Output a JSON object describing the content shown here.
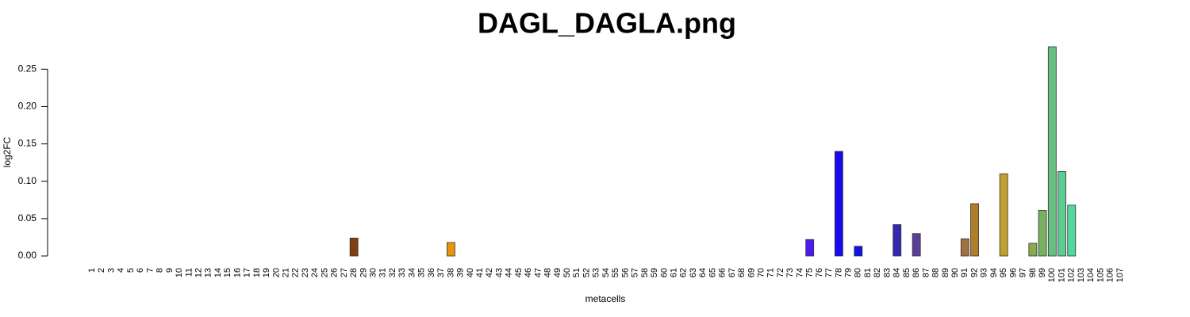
{
  "chart_data": {
    "type": "bar",
    "title": "DAGL_DAGLA.png",
    "x_label": "metacells",
    "y_label": "log2FC",
    "categories": [
      "1",
      "2",
      "3",
      "4",
      "5",
      "6",
      "7",
      "8",
      "9",
      "10",
      "11",
      "12",
      "13",
      "14",
      "15",
      "16",
      "17",
      "18",
      "19",
      "20",
      "21",
      "22",
      "23",
      "24",
      "25",
      "26",
      "27",
      "28",
      "29",
      "30",
      "31",
      "32",
      "33",
      "34",
      "35",
      "36",
      "37",
      "38",
      "39",
      "40",
      "41",
      "42",
      "43",
      "44",
      "45",
      "46",
      "47",
      "48",
      "49",
      "50",
      "51",
      "52",
      "53",
      "54",
      "55",
      "56",
      "57",
      "58",
      "59",
      "60",
      "61",
      "62",
      "63",
      "64",
      "65",
      "66",
      "67",
      "68",
      "69",
      "70",
      "71",
      "72",
      "73",
      "74",
      "75",
      "76",
      "77",
      "78",
      "79",
      "80",
      "81",
      "82",
      "83",
      "84",
      "85",
      "86",
      "87",
      "88",
      "89",
      "90",
      "91",
      "92",
      "93",
      "94",
      "95",
      "96",
      "97",
      "98",
      "99",
      "100",
      "101",
      "102",
      "103",
      "104",
      "105",
      "106",
      "107"
    ],
    "values": [
      0,
      0,
      0,
      0,
      0,
      0,
      0,
      0,
      0,
      0,
      0,
      0,
      0,
      0,
      0,
      0,
      0,
      0,
      0,
      0,
      0,
      0,
      0,
      0,
      0,
      0,
      0,
      0.024,
      0,
      0,
      0,
      0,
      0,
      0,
      0,
      0,
      0,
      0.018,
      0,
      0,
      0,
      0,
      0,
      0,
      0,
      0,
      0,
      0,
      0,
      0,
      0,
      0,
      0,
      0,
      0,
      0,
      0,
      0,
      0,
      0,
      0,
      0,
      0,
      0,
      0,
      0,
      0,
      0,
      0,
      0,
      0,
      0,
      0,
      0,
      0.022,
      0,
      0,
      0.14,
      0,
      0.013,
      0,
      0,
      0,
      0.042,
      0,
      0.03,
      0,
      0,
      0,
      0,
      0.023,
      0.07,
      0,
      0,
      0.11,
      0,
      0,
      0.017,
      0.061,
      0.28,
      0.113,
      0.068,
      0,
      0,
      0,
      0,
      0
    ],
    "colors": [
      "#888",
      "#888",
      "#888",
      "#888",
      "#888",
      "#888",
      "#888",
      "#888",
      "#888",
      "#888",
      "#888",
      "#888",
      "#888",
      "#888",
      "#888",
      "#888",
      "#888",
      "#888",
      "#888",
      "#888",
      "#888",
      "#888",
      "#888",
      "#888",
      "#888",
      "#888",
      "#888",
      "#7f3f0f",
      "#888",
      "#888",
      "#888",
      "#888",
      "#888",
      "#888",
      "#888",
      "#888",
      "#888",
      "#e8950a",
      "#888",
      "#888",
      "#888",
      "#888",
      "#888",
      "#888",
      "#888",
      "#888",
      "#888",
      "#888",
      "#888",
      "#888",
      "#888",
      "#888",
      "#888",
      "#888",
      "#888",
      "#888",
      "#888",
      "#888",
      "#888",
      "#888",
      "#888",
      "#888",
      "#888",
      "#888",
      "#888",
      "#888",
      "#888",
      "#888",
      "#888",
      "#888",
      "#888",
      "#888",
      "#888",
      "#888",
      "#4a1cf0",
      "#888",
      "#888",
      "#1a0aee",
      "#888",
      "#1010e8",
      "#888",
      "#888",
      "#888",
      "#3427b0",
      "#888",
      "#5a3f9a",
      "#888",
      "#888",
      "#888",
      "#888",
      "#a07040",
      "#b07e28",
      "#888",
      "#888",
      "#c0a030",
      "#888",
      "#888",
      "#8aaa50",
      "#78b060",
      "#66c080",
      "#5ccc90",
      "#50d8a0",
      "#888",
      "#888",
      "#888",
      "#888",
      "#888"
    ],
    "ylim": [
      0,
      0.28
    ],
    "yticks": [
      {
        "value": 0,
        "label": "0.00"
      },
      {
        "value": 0.05,
        "label": "0.05"
      },
      {
        "value": 0.1,
        "label": "0.10"
      },
      {
        "value": 0.15,
        "label": "0.15"
      },
      {
        "value": 0.2,
        "label": "0.20"
      },
      {
        "value": 0.25,
        "label": "0.25"
      }
    ]
  }
}
